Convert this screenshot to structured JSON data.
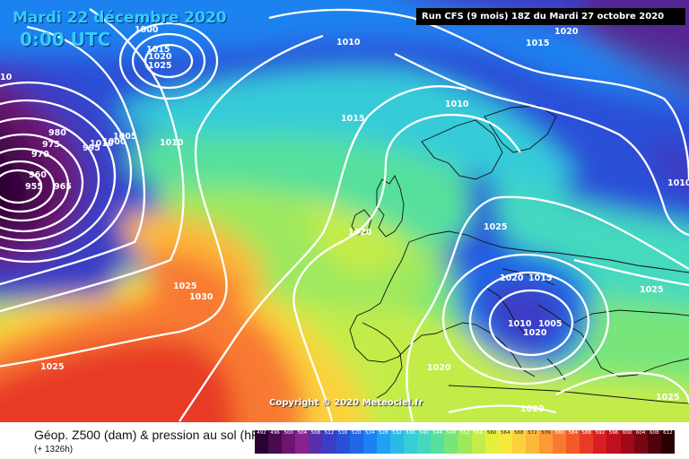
{
  "header": {
    "date": "Mardi 22 décembre 2020",
    "time": "0:00 UTC",
    "run_info": "Run CFS (9 mois) 18Z du Mardi 27 octobre 2020"
  },
  "copyright": "Copyright © 2020 Meteociel.fr",
  "footer": {
    "title": "Géop. Z500 (dam) & pression au sol (hPa)",
    "subtitle": "(+ 1326h)"
  },
  "isobar_labels": [
    "1000",
    "1015",
    "1020",
    "1025",
    "1010",
    "1020",
    "1010",
    "1015",
    "1010",
    "1015",
    "980",
    "975",
    "970",
    "995",
    "1000",
    "1005",
    "1010",
    "960",
    "955",
    "965",
    "1025",
    "1020",
    "1025",
    "1030",
    "1025",
    "1020",
    "1015",
    "1010",
    "1005",
    "1025",
    "1020",
    "1025",
    "1020",
    "1010",
    "1020",
    "10"
  ],
  "scale": {
    "labels": [
      "492",
      "496",
      "500",
      "504",
      "508",
      "512",
      "516",
      "520",
      "524",
      "528",
      "532",
      "536",
      "540",
      "544",
      "548",
      "552",
      "556",
      "560",
      "564",
      "568",
      "572",
      "576",
      "580",
      "584",
      "588",
      "592",
      "596",
      "600",
      "604",
      "608",
      "612"
    ],
    "colors": [
      "#2b0033",
      "#4a0a4f",
      "#6b1570",
      "#8a2290",
      "#5a2ea8",
      "#3b3ec4",
      "#2a50d8",
      "#1f66e8",
      "#1b82f0",
      "#22a0f2",
      "#2cb8e8",
      "#36ccd8",
      "#44d9bf",
      "#57e09c",
      "#78e57a",
      "#9ee85e",
      "#c4ec4a",
      "#e4ef3e",
      "#f6e83c",
      "#fbd23c",
      "#fcb83a",
      "#fb9a36",
      "#f87a30",
      "#f25a2a",
      "#e83a26",
      "#d81e22",
      "#c0101e",
      "#9e0a1a",
      "#7a0614",
      "#50020c",
      "#2a0004"
    ]
  }
}
